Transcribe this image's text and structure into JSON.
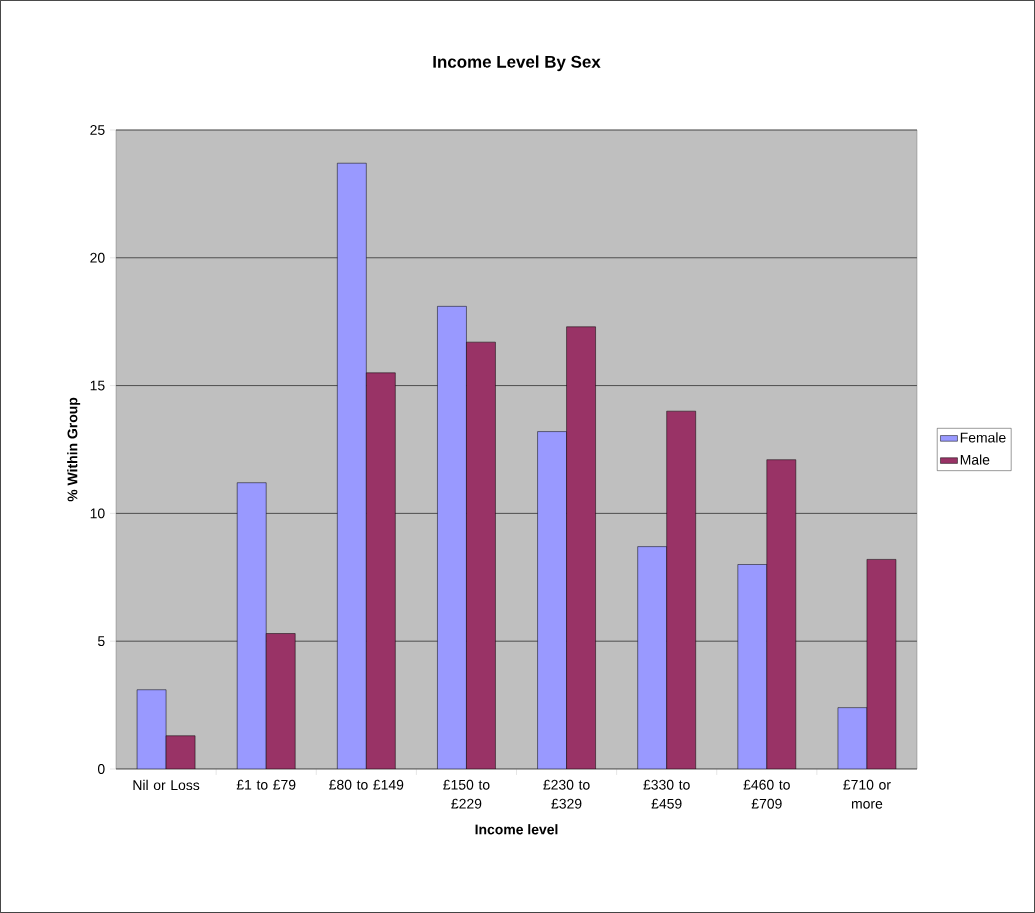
{
  "chart_data": {
    "type": "bar",
    "title": "Income Level By Sex",
    "xlabel": "Income level",
    "ylabel": "% Within Group",
    "categories": [
      "Nil or Loss",
      "£1 to £79",
      "£80 to £149",
      "£150 to £229",
      "£230 to £329",
      "£330 to £459",
      "£460 to £709",
      "£710 or more"
    ],
    "series": [
      {
        "name": "Female",
        "color": "#9999ff",
        "values": [
          3.1,
          11.2,
          23.7,
          18.1,
          13.2,
          8.7,
          8.0,
          2.4
        ]
      },
      {
        "name": "Male",
        "color": "#993366",
        "values": [
          1.3,
          5.3,
          15.5,
          16.7,
          17.3,
          14.0,
          12.1,
          8.2
        ]
      }
    ],
    "ylim": [
      0,
      25
    ],
    "yticks": [
      0,
      5,
      10,
      15,
      20,
      25
    ],
    "grid": "y",
    "legend": "right"
  }
}
